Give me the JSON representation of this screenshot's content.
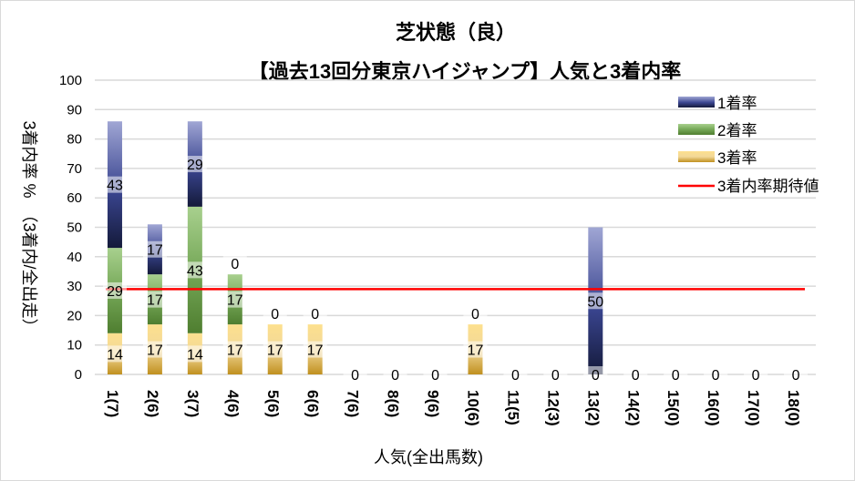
{
  "chart_data": {
    "type": "bar",
    "stacked": true,
    "title": "芝状態（良）",
    "subtitle": "【過去13回分東京ハイジャンプ】人気と3着内率",
    "xlabel": "人気(全出馬数)",
    "ylabel": "3着内率 %　（3着内/全出走）",
    "ylim": [
      0,
      100
    ],
    "yticks": [
      0,
      10,
      20,
      30,
      40,
      50,
      60,
      70,
      80,
      90,
      100
    ],
    "grid": true,
    "legend_position": "right",
    "categories": [
      "1(7)",
      "2(6)",
      "3(7)",
      "4(6)",
      "5(6)",
      "6(6)",
      "7(6)",
      "8(6)",
      "9(6)",
      "10(6)",
      "11(5)",
      "12(3)",
      "13(2)",
      "14(2)",
      "15(0)",
      "16(0)",
      "17(0)",
      "18(0)"
    ],
    "series": [
      {
        "name": "3着率",
        "color": "#c9972a",
        "values": [
          14,
          17,
          14,
          17,
          17,
          17,
          0,
          0,
          0,
          17,
          0,
          0,
          0,
          0,
          0,
          0,
          0,
          0
        ]
      },
      {
        "name": "2着率",
        "color": "#5b8a3a",
        "values": [
          29,
          17,
          43,
          17,
          0,
          0,
          0,
          0,
          0,
          0,
          0,
          0,
          0,
          0,
          0,
          0,
          0,
          0
        ]
      },
      {
        "name": "1着率",
        "color": "#3a4590",
        "values": [
          43,
          17,
          29,
          0,
          0,
          0,
          0,
          0,
          0,
          0,
          0,
          0,
          50,
          0,
          0,
          0,
          0,
          0
        ]
      }
    ],
    "reference_line": {
      "name": "3着内率期待値",
      "color": "#ff0000",
      "value": 29
    },
    "labels_shown": [
      {
        "category": "1(7)",
        "values": [
          "14",
          "29",
          "43"
        ]
      },
      {
        "category": "2(6)",
        "values": [
          "17",
          "17",
          "17"
        ]
      },
      {
        "category": "3(7)",
        "values": [
          "14",
          "43",
          "29"
        ]
      },
      {
        "category": "4(6)",
        "values": [
          "17",
          "17",
          "0"
        ]
      },
      {
        "category": "5(6)",
        "values": [
          "17",
          "0"
        ]
      },
      {
        "category": "6(6)",
        "values": [
          "17",
          "0"
        ]
      },
      {
        "category": "7(6)",
        "values": [
          "0"
        ]
      },
      {
        "category": "8(6)",
        "values": [
          "0"
        ]
      },
      {
        "category": "9(6)",
        "values": [
          "0"
        ]
      },
      {
        "category": "10(6)",
        "values": [
          "17",
          "0"
        ]
      },
      {
        "category": "11(5)",
        "values": [
          "0"
        ]
      },
      {
        "category": "12(3)",
        "values": [
          "0"
        ]
      },
      {
        "category": "13(2)",
        "values": [
          "0",
          "50"
        ]
      },
      {
        "category": "14(2)",
        "values": [
          "0"
        ]
      },
      {
        "category": "15(0)",
        "values": [
          "0"
        ]
      },
      {
        "category": "16(0)",
        "values": [
          "0"
        ]
      },
      {
        "category": "17(0)",
        "values": [
          "0"
        ]
      },
      {
        "category": "18(0)",
        "values": [
          "0"
        ]
      }
    ]
  }
}
